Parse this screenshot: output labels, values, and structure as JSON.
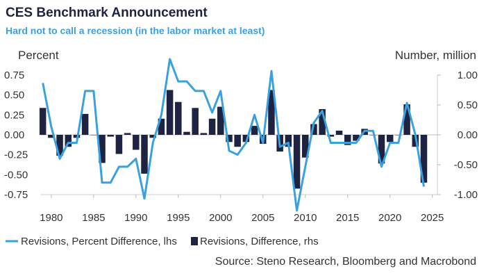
{
  "header": {
    "title": "CES Benchmark Announcement",
    "subtitle": "Hard not to call a recession (in the labor market at least)"
  },
  "source": "Source: Steno Research, Bloomberg and Macrobond",
  "chart_data": {
    "type": "bar+line",
    "left_axis": {
      "label": "Percent",
      "range": [
        -0.75,
        0.75
      ],
      "ticks": [
        0.75,
        0.5,
        0.25,
        0.0,
        -0.25,
        -0.5,
        -0.75
      ],
      "tick_labels": [
        "0.75",
        "0.50",
        "0.25",
        "0.00",
        "-0.25",
        "-0.50",
        "-0.75"
      ]
    },
    "right_axis": {
      "label": "Number, million",
      "range": [
        -1.0,
        1.0
      ],
      "ticks": [
        1.0,
        0.5,
        0.0,
        -0.5,
        -1.0
      ],
      "tick_labels": [
        "1.00",
        "0.50",
        "0.00",
        "-0.50",
        "-1.00"
      ]
    },
    "x_axis": {
      "ticks": [
        1980,
        1985,
        1990,
        1995,
        2000,
        2005,
        2010,
        2015,
        2020,
        2025
      ],
      "tick_labels": [
        "1980",
        "1985",
        "1990",
        "1995",
        "2000",
        "2005",
        "2010",
        "2015",
        "2020",
        "2025"
      ]
    },
    "years": [
      1979,
      1980,
      1981,
      1982,
      1983,
      1984,
      1985,
      1986,
      1987,
      1988,
      1989,
      1990,
      1991,
      1992,
      1993,
      1994,
      1995,
      1996,
      1997,
      1998,
      1999,
      2000,
      2001,
      2002,
      2003,
      2004,
      2005,
      2006,
      2007,
      2008,
      2009,
      2010,
      2011,
      2012,
      2013,
      2014,
      2015,
      2016,
      2017,
      2018,
      2019,
      2020,
      2021,
      2022,
      2023,
      2024
    ],
    "series": [
      {
        "name": "Revisions, Percent Difference, lhs",
        "type": "line",
        "axis": "left",
        "color": "#3aa0e0",
        "values": [
          0.65,
          0.1,
          -0.3,
          -0.1,
          -0.1,
          0.55,
          0.55,
          -0.6,
          -0.6,
          -0.4,
          -0.4,
          -0.3,
          -0.8,
          -0.1,
          0.25,
          0.95,
          0.67,
          0.67,
          0.55,
          0.55,
          0.28,
          0.55,
          -0.2,
          -0.25,
          -0.1,
          0.25,
          -0.1,
          0.8,
          -0.15,
          -0.1,
          -0.95,
          -0.4,
          0.15,
          0.3,
          -0.1,
          -0.1,
          -0.1,
          -0.1,
          0.05,
          0.05,
          -0.4,
          -0.1,
          -0.1,
          0.4,
          0.0,
          -0.65
        ]
      },
      {
        "name": "Revisions, Difference, rhs",
        "type": "bar",
        "axis": "right",
        "color": "#1e2341",
        "values": [
          0.45,
          -0.05,
          -0.35,
          -0.2,
          -0.05,
          0.35,
          0.0,
          -0.47,
          -0.03,
          -0.32,
          0.03,
          -0.25,
          -0.65,
          -0.05,
          0.27,
          0.75,
          0.55,
          0.05,
          0.45,
          0.03,
          0.27,
          0.47,
          -0.12,
          -0.2,
          -0.12,
          0.15,
          -0.15,
          0.75,
          -0.28,
          -0.2,
          -0.9,
          -0.38,
          0.18,
          0.43,
          -0.03,
          0.07,
          -0.17,
          -0.1,
          0.1,
          0.0,
          -0.48,
          -0.12,
          0.0,
          0.51,
          -0.2,
          -0.8
        ]
      }
    ]
  }
}
